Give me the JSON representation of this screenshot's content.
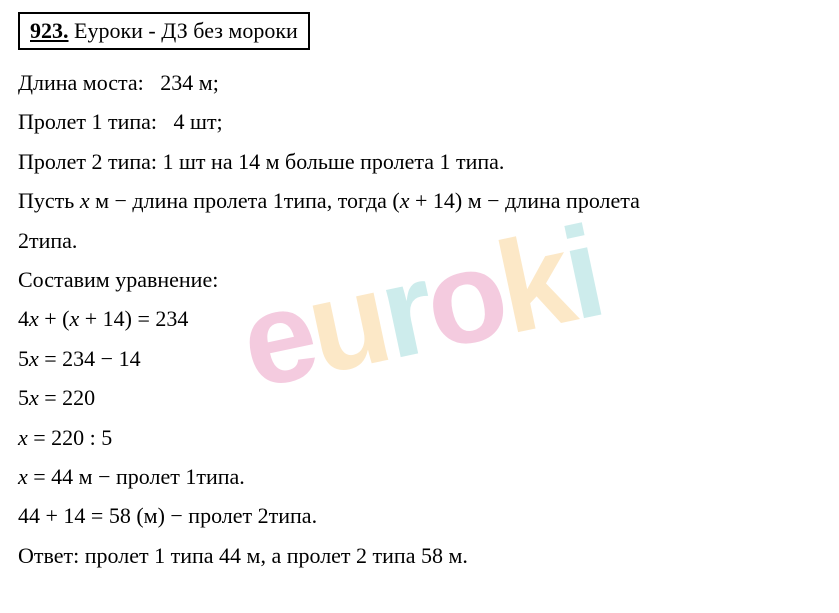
{
  "header": {
    "number": "923.",
    "brand": "Еуроки - ДЗ без мороки"
  },
  "lines": {
    "l1_label": "Длина моста:",
    "l1_value": "234 м;",
    "l2_label": "Пролет 1 типа:",
    "l2_value": "4 шт;",
    "l3": "Пролет 2 типа: 1 шт на 14 м больше пролета 1 типа.",
    "l4_p1": "Пусть ",
    "l4_var1": "x",
    "l4_p2": " м − длина пролета 1типа, тогда (",
    "l4_var2": "x",
    "l4_p3": " + 14) м − длина пролета",
    "l5": "2типа.",
    "l6": "Составим уравнение:",
    "eq1_p1": "4",
    "eq1_var1": "x",
    "eq1_p2": " + (",
    "eq1_var2": "x",
    "eq1_p3": " + 14) = 234",
    "eq2_p1": "5",
    "eq2_var": "x",
    "eq2_p2": " = 234 − 14",
    "eq3_p1": "5",
    "eq3_var": "x",
    "eq3_p2": " = 220",
    "eq4_var": "x",
    "eq4_p2": " = 220 : 5",
    "eq5_var": "x",
    "eq5_p2": " = 44 м − пролет 1типа.",
    "eq6": "44 + 14 = 58 (м) − пролет 2типа.",
    "answer": "Ответ: пролет 1 типа 44 м, а пролет 2 типа 58 м."
  },
  "watermark": {
    "e": "e",
    "u": "u",
    "r1": "r",
    "o": "o",
    "k": "k",
    "i": "i"
  },
  "style": {
    "body_bg": "#ffffff",
    "text_color": "#000000",
    "border_color": "#000000",
    "font_size_body": 22,
    "font_size_watermark": 130,
    "watermark_colors": {
      "pink": "#d63384",
      "orange": "#f5a623",
      "teal": "#3db8b8"
    },
    "watermark_opacity": 0.25
  }
}
